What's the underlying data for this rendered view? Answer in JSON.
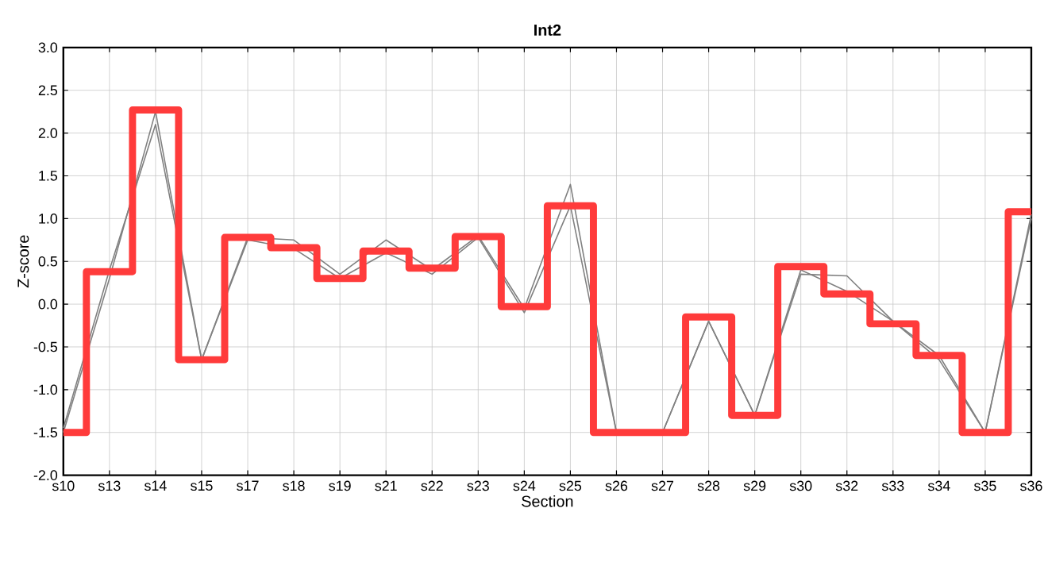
{
  "chart_data": {
    "type": "line",
    "title": "Int2",
    "xlabel": "Section",
    "ylabel": "Z-score",
    "categories": [
      "s10",
      "s13",
      "s14",
      "s15",
      "s17",
      "s18",
      "s19",
      "s21",
      "s22",
      "s23",
      "s24",
      "s25",
      "s26",
      "s27",
      "s28",
      "s29",
      "s30",
      "s32",
      "s33",
      "s34",
      "s35",
      "s36"
    ],
    "series": [
      {
        "color": "#808080",
        "values": [
          -1.5,
          0.3,
          2.25,
          -0.65,
          0.78,
          0.75,
          0.35,
          0.75,
          0.4,
          0.8,
          -0.05,
          1.4,
          -1.5,
          -1.5,
          -0.2,
          -1.3,
          0.35,
          0.33,
          -0.2,
          -0.65,
          -1.5,
          1.05
        ]
      },
      {
        "color": "#808080",
        "values": [
          -1.45,
          0.4,
          2.1,
          -0.65,
          0.75,
          0.65,
          0.3,
          0.6,
          0.35,
          0.78,
          -0.1,
          1.15,
          -1.5,
          -1.5,
          -0.2,
          -1.3,
          0.4,
          0.15,
          -0.2,
          -0.6,
          -1.5,
          1.0
        ]
      },
      {
        "type": "step",
        "color": "#ff3b3b",
        "values": [
          -1.5,
          0.38,
          2.27,
          -0.65,
          0.78,
          0.66,
          0.3,
          0.62,
          0.42,
          0.79,
          -0.03,
          1.15,
          -1.5,
          -1.5,
          -0.15,
          -1.3,
          0.44,
          0.12,
          -0.23,
          -0.6,
          -1.5,
          1.08
        ]
      }
    ],
    "ylim": [
      -2.0,
      3.0
    ],
    "yticks": [
      {
        "value": -2.0,
        "label": "-2.0"
      },
      {
        "value": -1.5,
        "label": "-1.5"
      },
      {
        "value": -1.0,
        "label": "-1.0"
      },
      {
        "value": -0.5,
        "label": "-0.5"
      },
      {
        "value": 0.0,
        "label": "0.0"
      },
      {
        "value": 0.5,
        "label": "0.5"
      },
      {
        "value": 1.0,
        "label": "1.0"
      },
      {
        "value": 1.5,
        "label": "1.5"
      },
      {
        "value": 2.0,
        "label": "2.0"
      },
      {
        "value": 2.5,
        "label": "2.5"
      },
      {
        "value": 3.0,
        "label": "3.0"
      }
    ],
    "grid": true,
    "marker": "none"
  }
}
